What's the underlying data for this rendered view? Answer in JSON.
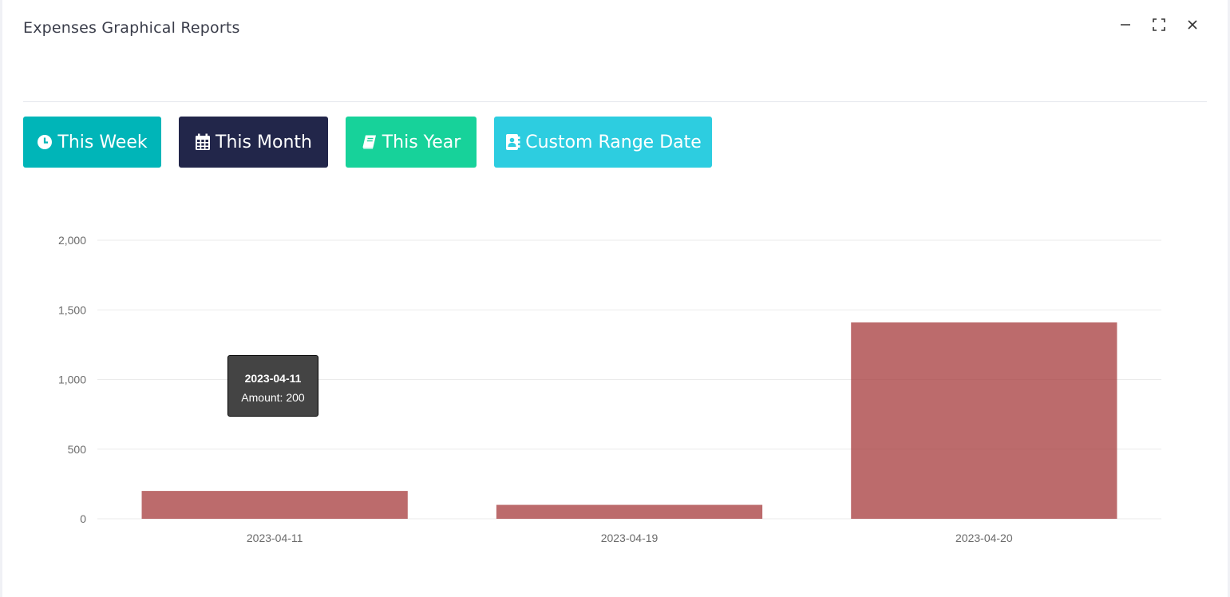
{
  "panel": {
    "title": "Expenses Graphical Reports"
  },
  "window_controls": [
    {
      "name": "minimize-icon"
    },
    {
      "name": "expand-icon"
    },
    {
      "name": "close-icon"
    }
  ],
  "buttons": {
    "this_week": {
      "label": "This Week",
      "icon": "clock-icon",
      "color": "#00b5b8"
    },
    "this_month": {
      "label": "This Month",
      "icon": "calendar-icon",
      "color": "#22264a"
    },
    "this_year": {
      "label": "This Year",
      "icon": "book-icon",
      "color": "#17d29a"
    },
    "custom_range": {
      "label": "Custom Range Date",
      "icon": "address-book-icon",
      "color": "#2dcde0"
    }
  },
  "tooltip": {
    "title": "2023-04-11",
    "body": "Amount: 200"
  },
  "chart_data": {
    "type": "bar",
    "categories": [
      "2023-04-11",
      "2023-04-19",
      "2023-04-20"
    ],
    "series": [
      {
        "values": [
          200,
          100,
          1410
        ],
        "color": "#a5393b"
      }
    ],
    "ylim": [
      0,
      2000
    ],
    "yticks": [
      0,
      500,
      1000,
      1500,
      2000
    ],
    "ytick_labels": [
      "0",
      "500",
      "1,000",
      "1,500",
      "2,000"
    ],
    "grid": true,
    "title": "",
    "xlabel": "",
    "ylabel": ""
  }
}
